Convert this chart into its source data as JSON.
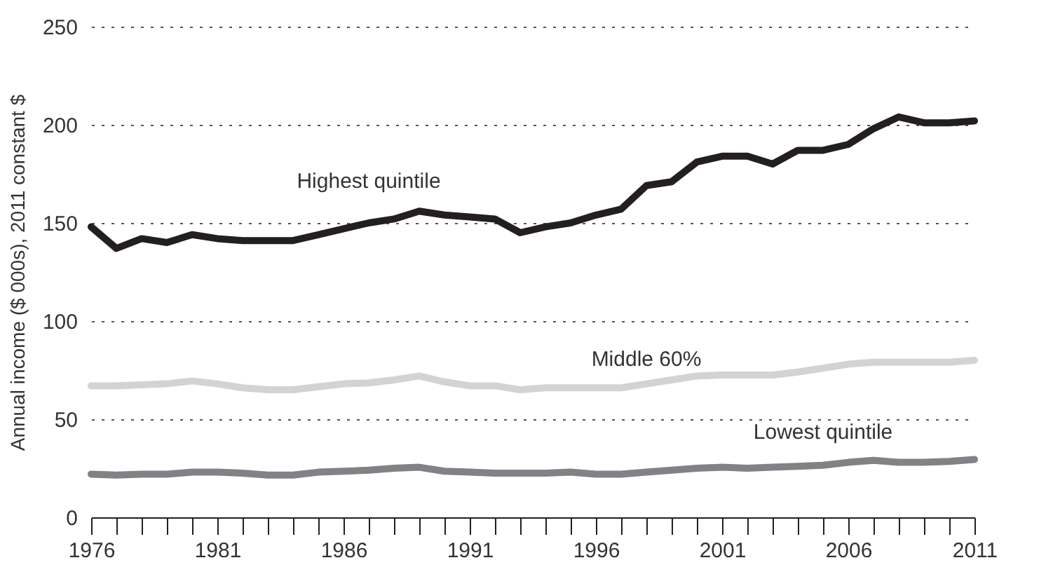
{
  "chart_data": {
    "type": "line",
    "ylabel": "Annual income ($ 000s), 2011 constant $",
    "x": [
      1976,
      1977,
      1978,
      1979,
      1980,
      1981,
      1982,
      1983,
      1984,
      1985,
      1986,
      1987,
      1988,
      1989,
      1990,
      1991,
      1992,
      1993,
      1994,
      1995,
      1996,
      1997,
      1998,
      1999,
      2000,
      2001,
      2002,
      2003,
      2004,
      2005,
      2006,
      2007,
      2008,
      2009,
      2010,
      2011
    ],
    "series": [
      {
        "name": "Highest quintile",
        "color": "#231f20",
        "values": [
          148,
          137,
          142,
          140,
          144,
          142,
          141,
          141,
          141,
          144,
          147,
          150,
          152,
          156,
          154,
          153,
          152,
          145,
          148,
          150,
          154,
          157,
          169,
          171,
          181,
          184,
          184,
          180,
          187,
          187,
          190,
          198,
          204,
          201,
          201,
          202
        ]
      },
      {
        "name": "Middle 60%",
        "color": "#d1d3d4",
        "values": [
          67,
          67,
          67.5,
          68,
          69.5,
          68,
          66,
          65,
          65,
          66.5,
          68,
          68.5,
          70,
          72,
          69,
          67,
          67,
          65,
          66,
          66,
          66,
          66,
          68,
          70,
          72,
          72.5,
          72.5,
          72.5,
          74,
          76,
          78,
          79,
          79,
          79,
          79,
          80
        ]
      },
      {
        "name": "Lowest quintile",
        "color": "#808285",
        "values": [
          22,
          21.5,
          22,
          22,
          23,
          23,
          22.5,
          21.5,
          21.5,
          23,
          23.5,
          24,
          25,
          25.5,
          23.5,
          23,
          22.5,
          22.5,
          22.5,
          23,
          22,
          22,
          23,
          24,
          25,
          25.5,
          25,
          25.5,
          26,
          26.5,
          28,
          29,
          28,
          28,
          28.5,
          29.5
        ]
      }
    ],
    "xlim": [
      1976,
      2011
    ],
    "xticks": [
      1976,
      {
        "value": 1977,
        "label": null
      },
      {
        "value": 1978,
        "label": null
      },
      {
        "value": 1979,
        "label": null
      },
      {
        "value": 1980,
        "label": null
      },
      1981,
      {
        "value": 1982,
        "label": null
      },
      {
        "value": 1983,
        "label": null
      },
      {
        "value": 1984,
        "label": null
      },
      {
        "value": 1985,
        "label": null
      },
      1986,
      {
        "value": 1987,
        "label": null
      },
      {
        "value": 1988,
        "label": null
      },
      {
        "value": 1989,
        "label": null
      },
      {
        "value": 1990,
        "label": null
      },
      1991,
      {
        "value": 1992,
        "label": null
      },
      {
        "value": 1993,
        "label": null
      },
      {
        "value": 1994,
        "label": null
      },
      {
        "value": 1995,
        "label": null
      },
      1996,
      {
        "value": 1997,
        "label": null
      },
      {
        "value": 1998,
        "label": null
      },
      {
        "value": 1999,
        "label": null
      },
      {
        "value": 2000,
        "label": null
      },
      2001,
      {
        "value": 2002,
        "label": null
      },
      {
        "value": 2003,
        "label": null
      },
      {
        "value": 2004,
        "label": null
      },
      {
        "value": 2005,
        "label": null
      },
      2006,
      {
        "value": 2007,
        "label": null
      },
      {
        "value": 2008,
        "label": null
      },
      {
        "value": 2009,
        "label": null
      },
      {
        "value": 2010,
        "label": null
      },
      2011
    ],
    "ylim": [
      0,
      250
    ],
    "yticks": [
      0,
      50,
      100,
      150,
      200,
      250
    ],
    "grid": "y",
    "legend": false,
    "line_style": "solid",
    "marker": "none"
  }
}
